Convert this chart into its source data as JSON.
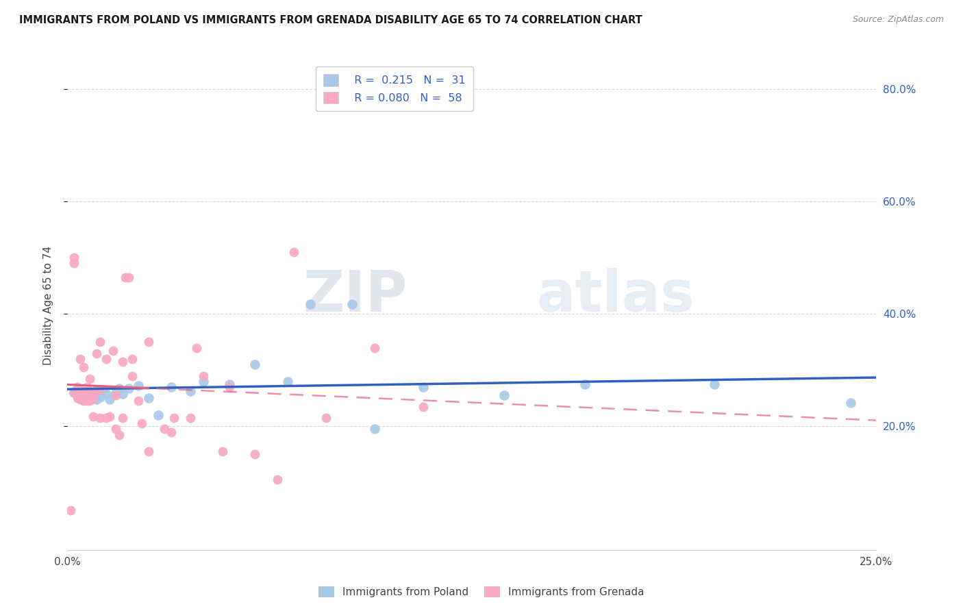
{
  "title": "IMMIGRANTS FROM POLAND VS IMMIGRANTS FROM GRENADA DISABILITY AGE 65 TO 74 CORRELATION CHART",
  "source": "Source: ZipAtlas.com",
  "ylabel": "Disability Age 65 to 74",
  "xlim": [
    0.0,
    0.25
  ],
  "ylim": [
    -0.02,
    0.85
  ],
  "poland_R": 0.215,
  "poland_N": 31,
  "grenada_R": 0.08,
  "grenada_N": 58,
  "poland_color": "#a8c8e8",
  "grenada_color": "#f8a8c0",
  "poland_line_color": "#3060c0",
  "grenada_line_color": "#e06080",
  "background_color": "#ffffff",
  "grid_color": "#d8d8d8",
  "ytick_vals": [
    0.2,
    0.4,
    0.6,
    0.8
  ],
  "ytick_labels": [
    "20.0%",
    "40.0%",
    "60.0%",
    "80.0%"
  ],
  "xtick_vals": [
    0.0,
    0.05,
    0.1,
    0.15,
    0.2,
    0.25
  ],
  "xtick_labels": [
    "0.0%",
    "",
    "",
    "",
    "",
    "25.0%"
  ],
  "poland_x": [
    0.002,
    0.004,
    0.005,
    0.007,
    0.008,
    0.009,
    0.01,
    0.011,
    0.012,
    0.013,
    0.015,
    0.016,
    0.017,
    0.019,
    0.022,
    0.025,
    0.028,
    0.032,
    0.038,
    0.042,
    0.05,
    0.058,
    0.068,
    0.075,
    0.088,
    0.095,
    0.11,
    0.135,
    0.16,
    0.2,
    0.242
  ],
  "poland_y": [
    0.26,
    0.258,
    0.262,
    0.255,
    0.255,
    0.248,
    0.252,
    0.265,
    0.258,
    0.248,
    0.26,
    0.268,
    0.258,
    0.268,
    0.272,
    0.25,
    0.22,
    0.27,
    0.262,
    0.28,
    0.275,
    0.31,
    0.28,
    0.418,
    0.418,
    0.195,
    0.27,
    0.255,
    0.275,
    0.275,
    0.242
  ],
  "grenada_x": [
    0.001,
    0.002,
    0.002,
    0.002,
    0.003,
    0.003,
    0.003,
    0.004,
    0.004,
    0.004,
    0.005,
    0.005,
    0.005,
    0.006,
    0.006,
    0.006,
    0.006,
    0.007,
    0.007,
    0.008,
    0.008,
    0.008,
    0.009,
    0.009,
    0.01,
    0.01,
    0.01,
    0.012,
    0.012,
    0.013,
    0.014,
    0.015,
    0.015,
    0.016,
    0.017,
    0.017,
    0.018,
    0.019,
    0.02,
    0.02,
    0.022,
    0.023,
    0.025,
    0.025,
    0.03,
    0.032,
    0.033,
    0.038,
    0.04,
    0.042,
    0.048,
    0.05,
    0.058,
    0.065,
    0.07,
    0.08,
    0.095,
    0.11
  ],
  "grenada_y": [
    0.05,
    0.26,
    0.49,
    0.5,
    0.255,
    0.25,
    0.27,
    0.25,
    0.248,
    0.32,
    0.245,
    0.26,
    0.305,
    0.245,
    0.252,
    0.262,
    0.27,
    0.245,
    0.285,
    0.218,
    0.25,
    0.26,
    0.265,
    0.33,
    0.265,
    0.215,
    0.35,
    0.32,
    0.215,
    0.218,
    0.335,
    0.255,
    0.195,
    0.185,
    0.215,
    0.315,
    0.465,
    0.465,
    0.32,
    0.29,
    0.245,
    0.205,
    0.155,
    0.35,
    0.195,
    0.19,
    0.215,
    0.215,
    0.34,
    0.29,
    0.155,
    0.27,
    0.15,
    0.105,
    0.51,
    0.215,
    0.34,
    0.235
  ]
}
